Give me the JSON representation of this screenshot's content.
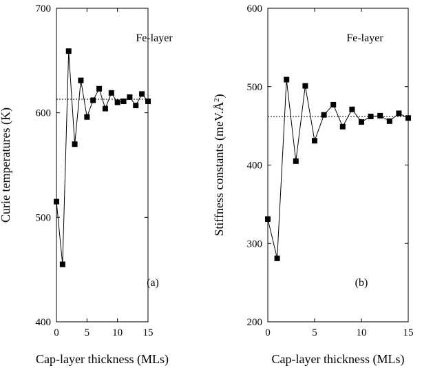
{
  "chart_data": [
    {
      "type": "line",
      "xlabel": "Cap-layer thickness (MLs)",
      "ylabel": "Curie temperatures (K)",
      "xlim": [
        0,
        15
      ],
      "ylim": [
        400,
        700
      ],
      "xticks": [
        "0",
        "5",
        "10",
        "15"
      ],
      "yticks": [
        "400",
        "500",
        "600",
        "700"
      ],
      "grid": false,
      "series": [
        {
          "x": [
            0,
            1,
            2,
            3,
            4,
            5,
            6,
            7,
            8,
            9,
            10,
            11,
            12,
            13,
            14,
            15
          ],
          "values": [
            515,
            455,
            659,
            570,
            631,
            596,
            612,
            623,
            604,
            619,
            610,
            611,
            615,
            607,
            618,
            611
          ],
          "marker": "square"
        }
      ],
      "reference_line": {
        "y": 613,
        "style": "dashed"
      },
      "annotations": [
        "Fe-layer",
        "(a)"
      ]
    },
    {
      "type": "line",
      "xlabel": "Cap-layer thickness (MLs)",
      "ylabel": "Stiffness constants (meV.Å²)",
      "xlim": [
        0,
        15
      ],
      "ylim": [
        200,
        600
      ],
      "xticks": [
        "0",
        "5",
        "10",
        "15"
      ],
      "yticks": [
        "200",
        "300",
        "400",
        "500",
        "600"
      ],
      "grid": false,
      "series": [
        {
          "x": [
            0,
            1,
            2,
            3,
            4,
            5,
            6,
            7,
            8,
            9,
            10,
            11,
            12,
            13,
            14,
            15
          ],
          "values": [
            331,
            281,
            509,
            405,
            501,
            431,
            464,
            477,
            449,
            471,
            455,
            462,
            463,
            456,
            466,
            460
          ],
          "marker": "square"
        }
      ],
      "reference_line": {
        "y": 462,
        "style": "dashed"
      },
      "annotations": [
        "Fe-layer",
        "(b)"
      ]
    }
  ]
}
